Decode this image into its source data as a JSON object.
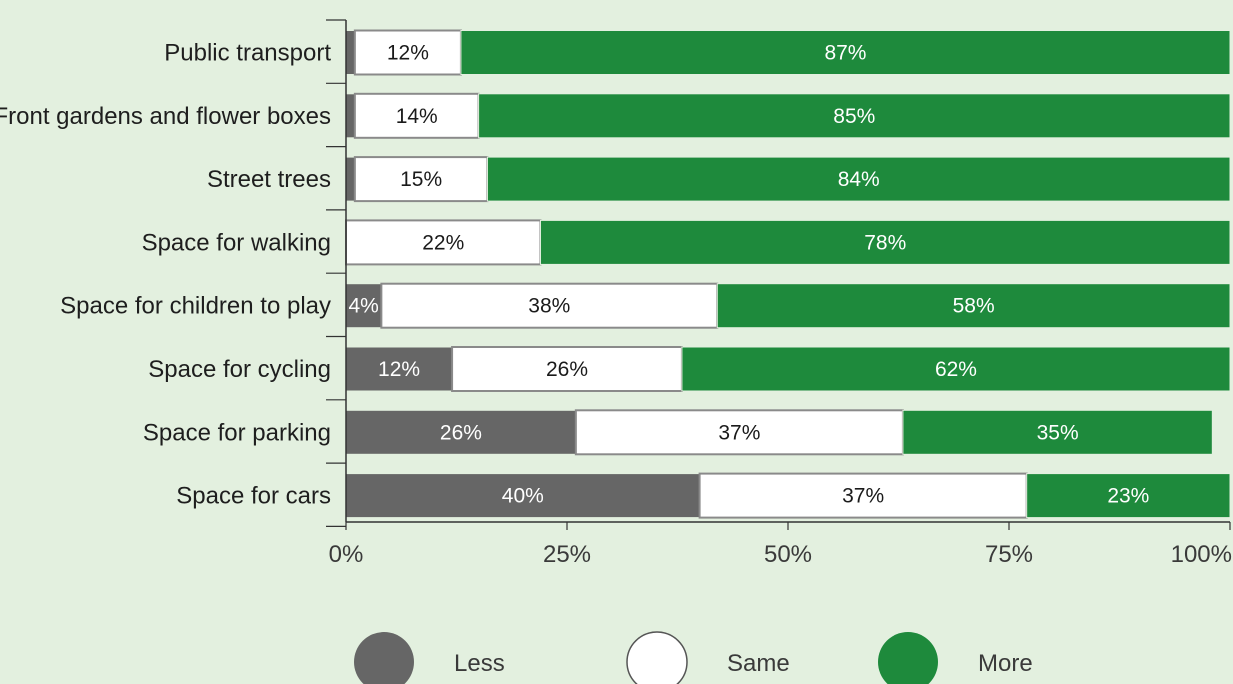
{
  "chart_data": {
    "type": "bar",
    "orientation": "horizontal",
    "stacked": true,
    "categories": [
      "Public transport",
      "Front gardens and flower boxes",
      "Street trees",
      "Space for walking",
      "Space for children to play",
      "Space for cycling",
      "Space for parking",
      "Space for cars"
    ],
    "series": [
      {
        "name": "Less",
        "color": "#666666",
        "values": [
          1,
          1,
          1,
          0,
          4,
          12,
          26,
          40
        ],
        "labels": [
          "",
          "",
          "",
          "",
          "4%",
          "12%",
          "26%",
          "40%"
        ]
      },
      {
        "name": "Same",
        "color": "#ffffff",
        "values": [
          12,
          14,
          15,
          22,
          38,
          26,
          37,
          37
        ],
        "labels": [
          "12%",
          "14%",
          "15%",
          "22%",
          "38%",
          "26%",
          "37%",
          "37%"
        ]
      },
      {
        "name": "More",
        "color": "#1e8a3c",
        "values": [
          87,
          85,
          84,
          78,
          58,
          62,
          35,
          23
        ],
        "labels": [
          "87%",
          "85%",
          "84%",
          "78%",
          "58%",
          "62%",
          "35%",
          "23%"
        ]
      }
    ],
    "xlim": [
      0,
      100
    ],
    "xticks": [
      "0%",
      "25%",
      "50%",
      "75%",
      "100%"
    ],
    "grid": false,
    "legend_position": "bottom",
    "xlabel": "",
    "ylabel": "",
    "title": ""
  }
}
